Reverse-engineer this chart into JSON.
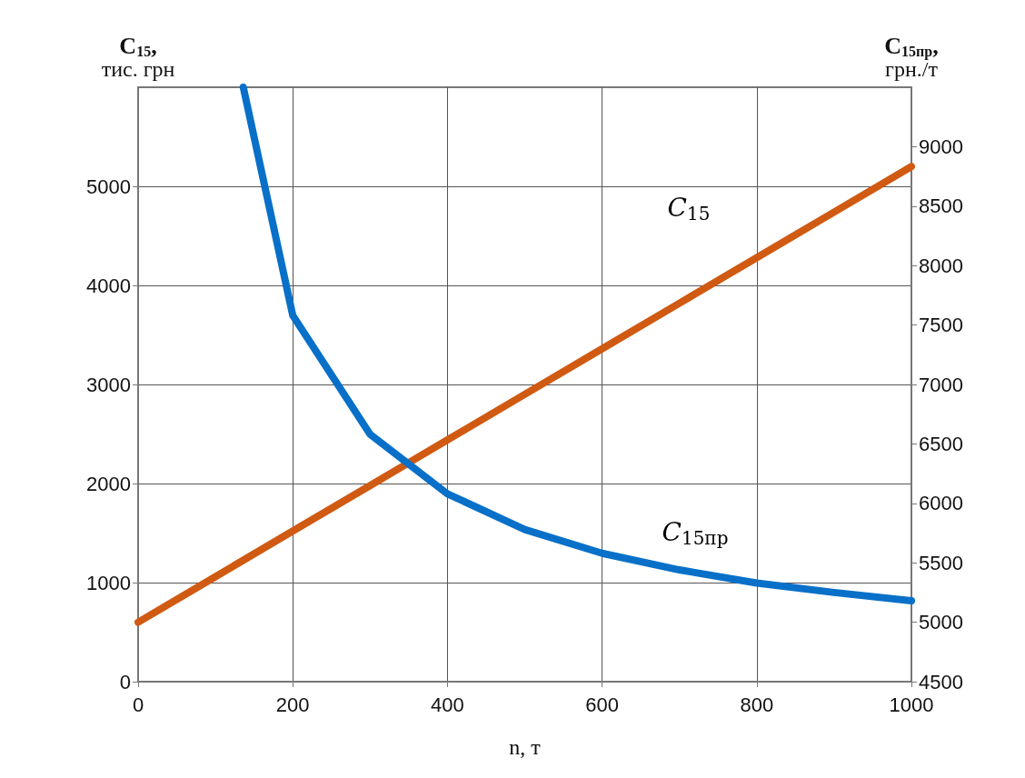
{
  "chart_data": {
    "type": "line",
    "xlabel": "n, т",
    "ylabel": "C$_{15}$,\nтис. грн",
    "y2label": "C$_{15пр}$,\nгрн./т",
    "x": [
      0,
      100,
      200,
      300,
      400,
      500,
      600,
      700,
      800,
      900,
      1000
    ],
    "series": [
      {
        "color": "#d05a12",
        "values": [
          600,
          1060,
          1520,
          1980,
          2440,
          2900,
          3360,
          3820,
          4280,
          4740,
          5200
        ]
      },
      {
        "color": "#0870c8",
        "axis": "y2",
        "x": [
          136,
          200,
          300,
          400,
          500,
          600,
          700,
          800,
          900,
          1000
        ],
        "values": [
          9500,
          7580,
          6580,
          6080,
          5780,
          5580,
          5440,
          5330,
          5250,
          5180
        ]
      }
    ],
    "xlim": [
      0,
      1000
    ],
    "xticks": [
      0,
      200,
      400,
      600,
      800,
      1000
    ],
    "ylim": [
      0,
      6000
    ],
    "yticks": [
      0,
      1000,
      2000,
      3000,
      4000,
      5000
    ],
    "y2lim": [
      4500,
      9500
    ],
    "y2ticks": [
      4500,
      5000,
      5500,
      6000,
      6500,
      7000,
      7500,
      8000,
      8500,
      9000
    ],
    "annotations": [
      "C$_{15}$",
      "C$_{15пр}$"
    ],
    "grid": true,
    "line_style": "solid"
  }
}
